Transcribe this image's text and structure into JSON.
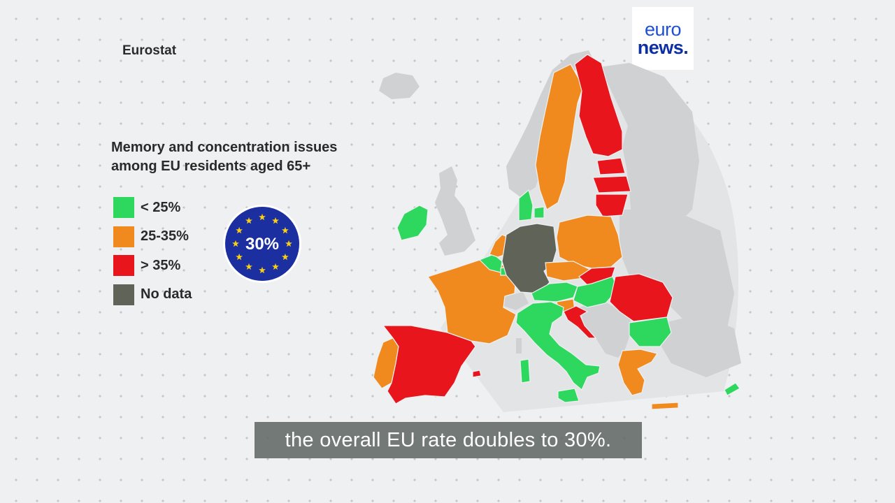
{
  "source": "Eurostat",
  "logo": {
    "line1": "euro",
    "line2": "news."
  },
  "title": {
    "line1": "Memory and concentration issues",
    "line2": "among EU residents aged 65+"
  },
  "legend": [
    {
      "label": "< 25%",
      "color": "#2ed85f"
    },
    {
      "label": "25-35%",
      "color": "#f08a1e"
    },
    {
      "label": "> 35%",
      "color": "#e8151c"
    },
    {
      "label": "No data",
      "color": "#5f6358"
    }
  ],
  "eu_badge": {
    "value": "30%",
    "color": "#1b2fa0",
    "star_color": "#f6cf16"
  },
  "colors": {
    "non_eu_land": "#cfd1d2",
    "sea_halo": "#e2e4e5"
  },
  "countries": [
    {
      "name": "Ireland",
      "category": "< 25%"
    },
    {
      "name": "Portugal",
      "category": "25-35%"
    },
    {
      "name": "Spain",
      "category": "> 35%"
    },
    {
      "name": "France",
      "category": "25-35%"
    },
    {
      "name": "Belgium",
      "category": "< 25%"
    },
    {
      "name": "Netherlands",
      "category": "25-35%"
    },
    {
      "name": "Luxembourg",
      "category": "< 25%"
    },
    {
      "name": "Germany",
      "category": "No data"
    },
    {
      "name": "Denmark",
      "category": "< 25%"
    },
    {
      "name": "Sweden",
      "category": "25-35%"
    },
    {
      "name": "Finland",
      "category": "> 35%"
    },
    {
      "name": "Estonia",
      "category": "> 35%"
    },
    {
      "name": "Latvia",
      "category": "> 35%"
    },
    {
      "name": "Lithuania",
      "category": "> 35%"
    },
    {
      "name": "Poland",
      "category": "25-35%"
    },
    {
      "name": "Czechia",
      "category": "25-35%"
    },
    {
      "name": "Slovakia",
      "category": "> 35%"
    },
    {
      "name": "Austria",
      "category": "< 25%"
    },
    {
      "name": "Hungary",
      "category": "< 25%"
    },
    {
      "name": "Slovenia",
      "category": "25-35%"
    },
    {
      "name": "Croatia",
      "category": "> 35%"
    },
    {
      "name": "Romania",
      "category": "> 35%"
    },
    {
      "name": "Bulgaria",
      "category": "< 25%"
    },
    {
      "name": "Greece",
      "category": "25-35%"
    },
    {
      "name": "Italy",
      "category": "< 25%"
    },
    {
      "name": "Malta",
      "category": "> 35%"
    },
    {
      "name": "Cyprus",
      "category": "< 25%"
    }
  ],
  "subtitle": "the overall EU rate doubles to 30%."
}
